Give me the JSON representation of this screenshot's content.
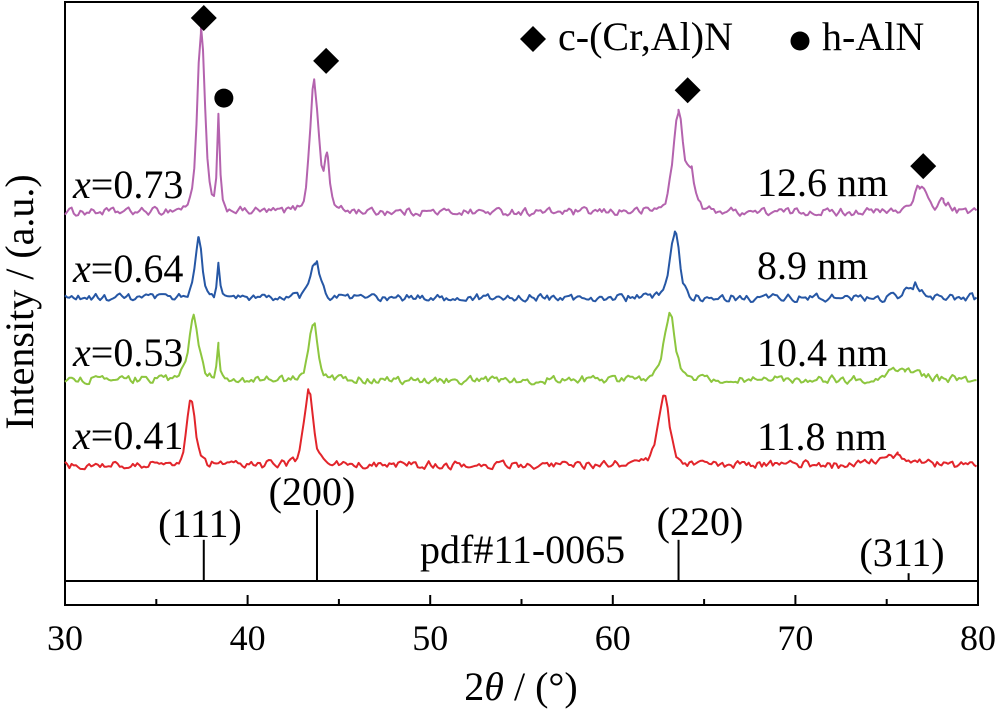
{
  "chart_data": {
    "type": "line",
    "xlabel": "2θ / (°)",
    "ylabel": "Intensity / (a.u.)",
    "xlim": [
      30,
      80
    ],
    "xticks": [
      30,
      40,
      50,
      60,
      70,
      80
    ],
    "xminor_ticks": [
      35,
      45,
      55,
      65,
      75
    ],
    "grid": false,
    "legend_position": "top-right",
    "legend": [
      {
        "symbol": "diamond",
        "label": "c-(Cr,Al)N"
      },
      {
        "symbol": "circle",
        "label": "h-AlN"
      }
    ],
    "series": [
      {
        "name": "x=0.73",
        "crystallite_size": "12.6 nm",
        "color": "#b463ae",
        "peaks": [
          {
            "two_theta": 37.45,
            "intensity": 100,
            "fwhm": 0.5
          },
          {
            "two_theta": 38.4,
            "intensity": 50,
            "fwhm": 0.18
          },
          {
            "two_theta": 43.65,
            "intensity": 72,
            "fwhm": 0.55
          },
          {
            "two_theta": 44.35,
            "intensity": 28,
            "fwhm": 0.35
          },
          {
            "two_theta": 63.6,
            "intensity": 54,
            "fwhm": 0.7
          },
          {
            "two_theta": 64.3,
            "intensity": 17,
            "fwhm": 0.5
          },
          {
            "two_theta": 76.8,
            "intensity": 13,
            "fwhm": 0.9
          },
          {
            "two_theta": 78.1,
            "intensity": 6,
            "fwhm": 0.6
          }
        ]
      },
      {
        "name": "x=0.64",
        "crystallite_size": "8.9 nm",
        "color": "#2657a5",
        "peaks": [
          {
            "two_theta": 37.3,
            "intensity": 32,
            "fwhm": 0.5
          },
          {
            "two_theta": 38.4,
            "intensity": 17,
            "fwhm": 0.18
          },
          {
            "two_theta": 43.7,
            "intensity": 21,
            "fwhm": 0.6
          },
          {
            "two_theta": 63.4,
            "intensity": 36,
            "fwhm": 0.6
          },
          {
            "two_theta": 76.5,
            "intensity": 7,
            "fwhm": 1.0
          }
        ]
      },
      {
        "name": "x=0.53",
        "crystallite_size": "10.4 nm",
        "color": "#8dc63f",
        "peaks": [
          {
            "two_theta": 37.05,
            "intensity": 33,
            "fwhm": 0.7
          },
          {
            "two_theta": 38.4,
            "intensity": 17,
            "fwhm": 0.18
          },
          {
            "two_theta": 43.6,
            "intensity": 31,
            "fwhm": 0.6
          },
          {
            "two_theta": 63.1,
            "intensity": 37,
            "fwhm": 0.75
          },
          {
            "two_theta": 76.0,
            "intensity": 6,
            "fwhm": 2.0
          }
        ]
      },
      {
        "name": "x=0.41",
        "crystallite_size": "11.8 nm",
        "color": "#e2252b",
        "peaks": [
          {
            "two_theta": 36.9,
            "intensity": 35,
            "fwhm": 0.55
          },
          {
            "two_theta": 43.35,
            "intensity": 42,
            "fwhm": 0.6
          },
          {
            "two_theta": 62.8,
            "intensity": 37,
            "fwhm": 0.75
          },
          {
            "two_theta": 75.6,
            "intensity": 5,
            "fwhm": 2.0
          }
        ]
      }
    ],
    "phase_markers": [
      {
        "two_theta": 37.6,
        "phase": "c-(Cr,Al)N",
        "symbol": "diamond"
      },
      {
        "two_theta": 38.7,
        "phase": "h-AlN",
        "symbol": "circle"
      },
      {
        "two_theta": 44.3,
        "phase": "c-(Cr,Al)N",
        "symbol": "diamond"
      },
      {
        "two_theta": 64.1,
        "phase": "c-(Cr,Al)N",
        "symbol": "diamond"
      },
      {
        "two_theta": 77.0,
        "phase": "c-(Cr,Al)N",
        "symbol": "diamond"
      }
    ],
    "reference": {
      "label": "pdf#11-0065",
      "lines": [
        {
          "hkl": "(111)",
          "two_theta": 37.6,
          "relative_intensity": 58
        },
        {
          "hkl": "(200)",
          "two_theta": 43.8,
          "relative_intensity": 100
        },
        {
          "hkl": "(220)",
          "two_theta": 63.6,
          "relative_intensity": 58
        },
        {
          "hkl": "(311)",
          "two_theta": 76.2,
          "relative_intensity": 11
        }
      ]
    }
  }
}
